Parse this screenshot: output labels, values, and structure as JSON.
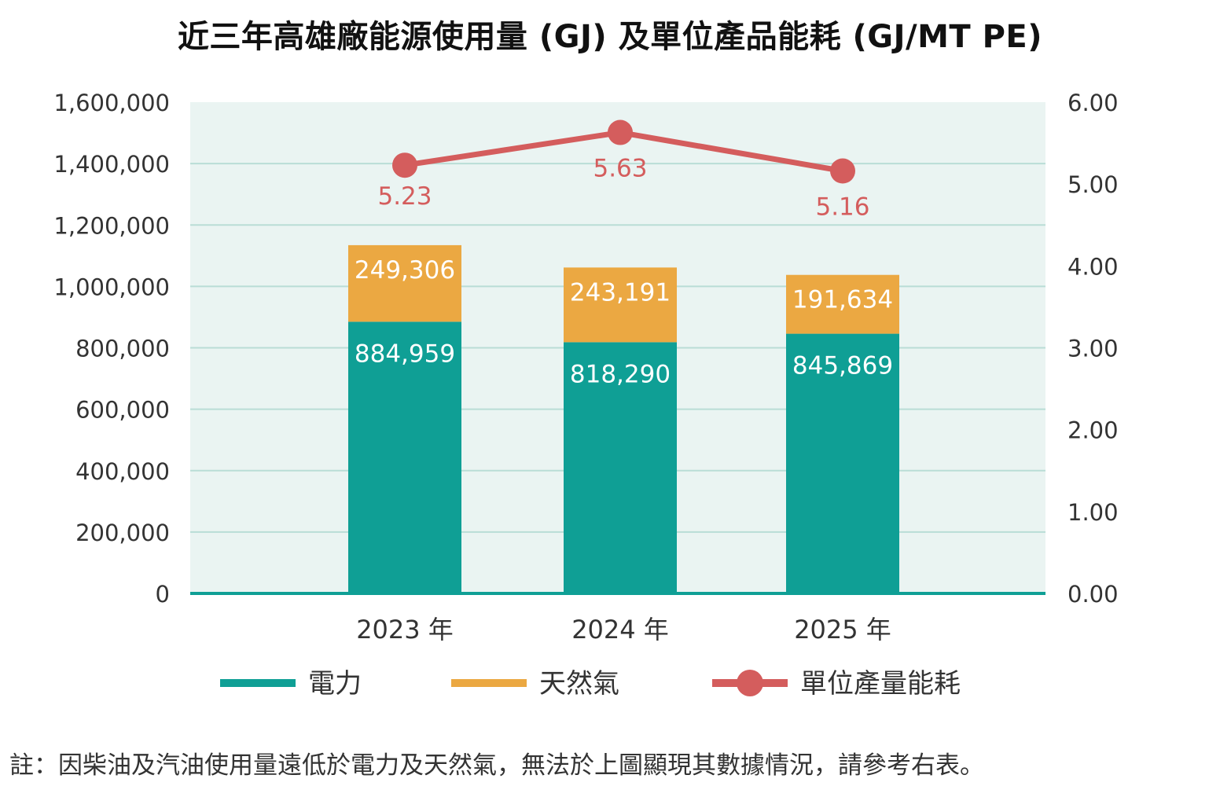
{
  "chart_data": {
    "type": "bar",
    "title": "近三年高雄廠能源使用量 (GJ) 及單位產品能耗 (GJ/MT PE)",
    "stacked": true,
    "categories": [
      "2023 年",
      "2024 年",
      "2025 年"
    ],
    "series": [
      {
        "name": "電力",
        "type": "bar",
        "axis": "left",
        "color": "#0f9f95",
        "values": [
          884959,
          818290,
          845869
        ],
        "labels": [
          "884,959",
          "818,290",
          "845,869"
        ]
      },
      {
        "name": "天然氣",
        "type": "bar",
        "axis": "left",
        "color": "#eba842",
        "values": [
          249306,
          243191,
          191634
        ],
        "labels": [
          "249,306",
          "243,191",
          "191,634"
        ]
      },
      {
        "name": "單位產量能耗",
        "type": "line",
        "axis": "right",
        "color": "#d45d5d",
        "values": [
          5.23,
          5.63,
          5.16
        ],
        "labels": [
          "5.23",
          "5.63",
          "5.16"
        ]
      }
    ],
    "left_axis": {
      "ylim": [
        0,
        1600000
      ],
      "ticks": [
        "0",
        "200,000",
        "400,000",
        "600,000",
        "800,000",
        "1,000,000",
        "1,200,000",
        "1,400,000",
        "1,600,000"
      ]
    },
    "right_axis": {
      "ylim": [
        0,
        6
      ],
      "ticks": [
        "0.00",
        "1.00",
        "2.00",
        "3.00",
        "4.00",
        "5.00",
        "6.00"
      ]
    },
    "grid": true,
    "plot_background": "#eaf4f2",
    "grid_color": "#b9ddd6",
    "baseline_color": "#0f9f95",
    "legend_position": "bottom"
  },
  "note": "註：因柴油及汽油使用量遠低於電力及天然氣，無法於上圖顯現其數據情況，請參考右表。"
}
